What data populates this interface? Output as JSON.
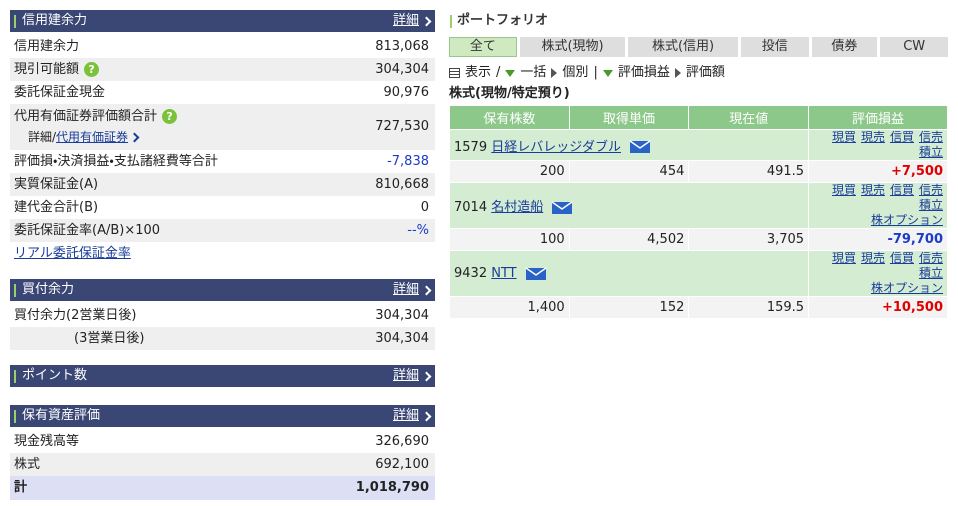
{
  "left": {
    "margin": {
      "title": "信用建余力",
      "detail": "詳細",
      "rows": [
        {
          "label": "信用建余力",
          "value": "813,068"
        },
        {
          "label": "現引可能額",
          "help": "?",
          "value": "304,304"
        },
        {
          "label": "委託保証金現金",
          "value": "90,976"
        },
        {
          "label": "代用有価証券評価額合計",
          "help": "?",
          "sub_label": "詳細/",
          "sub_link": "代用有価証券",
          "value": "727,530"
        },
        {
          "label": "評価損・決済損益・支払諸経費等合計",
          "value": "-7,838"
        },
        {
          "label": "実質保証金(A)",
          "value": "810,668"
        },
        {
          "label": "建代金合計(B)",
          "value": "0"
        },
        {
          "label": "委託保証金率(A/B)×100",
          "value": "--%"
        }
      ],
      "link": "リアル委託保証金率"
    },
    "buying": {
      "title": "買付余力",
      "detail": "詳細",
      "rows": [
        {
          "label": "買付余力(2営業日後)",
          "value": "304,304"
        },
        {
          "label": "(3営業日後)",
          "value": "304,304"
        }
      ]
    },
    "points": {
      "title": "ポイント数",
      "detail": "詳細"
    },
    "assets": {
      "title": "保有資産評価",
      "detail": "詳細",
      "rows": [
        {
          "label": "現金残高等",
          "value": "326,690"
        },
        {
          "label": "株式",
          "value": "692,100"
        }
      ],
      "total": {
        "label": "計",
        "value": "1,018,790"
      }
    }
  },
  "portfolio": {
    "title": "ポートフォリオ",
    "tabs": [
      "全て",
      "株式(現物)",
      "株式(信用)",
      "投信",
      "債券",
      "CW"
    ],
    "toolbar": [
      "表示",
      "/",
      "一括",
      "個別",
      "|",
      "評価損益",
      "評価額"
    ],
    "section": "株式(現物/特定預り)",
    "columns": [
      "保有株数",
      "取得単価",
      "現在値",
      "評価損益"
    ],
    "holdings": [
      {
        "code": "1579",
        "name": "日経レバレッジダブル",
        "actions": [
          "現買",
          "現売",
          "信買",
          "信売",
          "積立"
        ],
        "quantity": "200",
        "cost": "454",
        "price": "491.5",
        "pl": "+7,500"
      },
      {
        "code": "7014",
        "name": "名村造船",
        "actions": [
          "現買",
          "現売",
          "信買",
          "信売",
          "積立"
        ],
        "option": "株オプション",
        "quantity": "100",
        "cost": "4,502",
        "price": "3,705",
        "pl": "-79,700"
      },
      {
        "code": "9432",
        "name": "NTT",
        "actions": [
          "現買",
          "現売",
          "信買",
          "信売",
          "積立"
        ],
        "option": "株オプション",
        "quantity": "1,400",
        "cost": "152",
        "price": "159.5",
        "pl": "+10,500"
      }
    ]
  }
}
